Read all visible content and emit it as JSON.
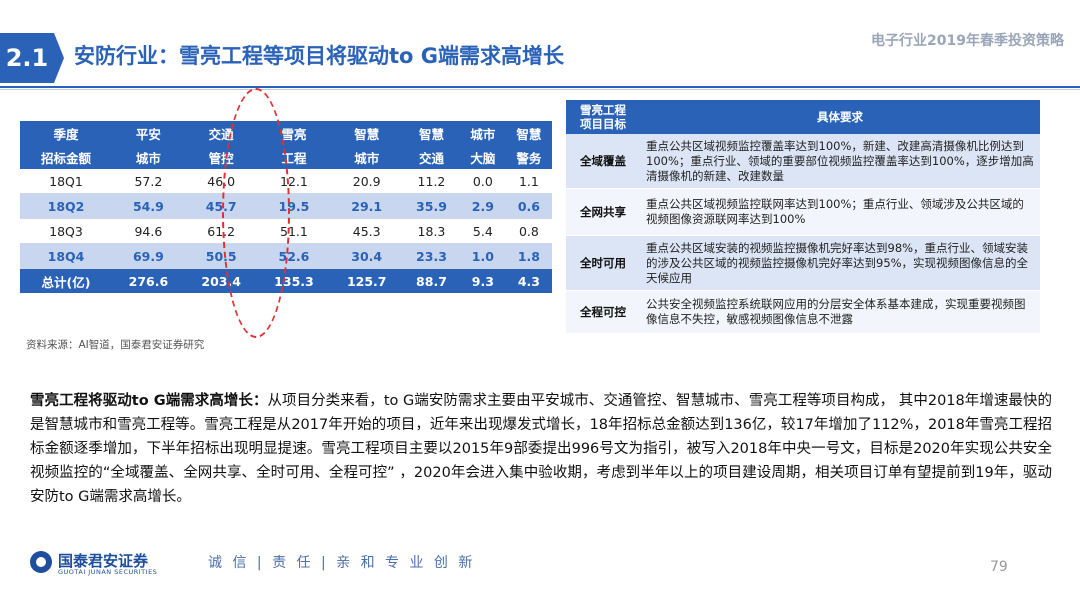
{
  "header": {
    "section_number": "2.1",
    "title": "安防行业：雪亮工程等项目将驱动to G端需求高增长",
    "report_title": "电子行业2019年春季投资策略"
  },
  "left_table": {
    "headers": [
      [
        "季度",
        "招标金额"
      ],
      [
        "平安",
        "城市"
      ],
      [
        "交通",
        "管控"
      ],
      [
        "雪亮",
        "工程"
      ],
      [
        "智慧",
        "城市"
      ],
      [
        "智慧",
        "交通"
      ],
      [
        "城市",
        "大脑"
      ],
      [
        "智慧",
        "警务"
      ]
    ],
    "rows": [
      [
        "18Q1",
        "57.2",
        "46.0",
        "12.1",
        "20.9",
        "11.2",
        "0.0",
        "1.1"
      ],
      [
        "18Q2",
        "54.9",
        "45.7",
        "19.5",
        "29.1",
        "35.9",
        "2.9",
        "0.6"
      ],
      [
        "18Q3",
        "94.6",
        "61.2",
        "51.1",
        "45.3",
        "18.3",
        "5.4",
        "0.8"
      ],
      [
        "18Q4",
        "69.9",
        "50.5",
        "52.6",
        "30.4",
        "23.3",
        "1.0",
        "1.8"
      ]
    ],
    "total": [
      "总计(亿)",
      "276.6",
      "203.4",
      "135.3",
      "125.7",
      "88.7",
      "9.3",
      "4.3"
    ]
  },
  "source_note": "资料来源：AI智道，国泰君安证券研究",
  "right_table": {
    "header_a": [
      "雪亮工程",
      "项目目标"
    ],
    "header_b": "具体要求",
    "rows": [
      {
        "goal": "全域覆盖",
        "requirement": "重点公共区域视频监控覆盖率达到100%，新建、改建高清摄像机比例达到100%；重点行业、领域的重要部位视频监控覆盖率达到100%，逐步增加高清摄像机的新建、改建数量"
      },
      {
        "goal": "全网共享",
        "requirement": "重点公共区域视频监控联网率达到100%；重点行业、领域涉及公共区域的视频图像资源联网率达到100%"
      },
      {
        "goal": "全时可用",
        "requirement": "重点公共区域安装的视频监控摄像机完好率达到98%，重点行业、领域安装的涉及公共区域的视频监控摄像机完好率达到95%，实现视频图像信息的全天候应用"
      },
      {
        "goal": "全程可控",
        "requirement": "公共安全视频监控系统联网应用的分层安全体系基本建成，实现重要视频图像信息不失控，敏感视频图像信息不泄露"
      }
    ]
  },
  "paragraph": {
    "lead": "雪亮工程将驱动to G端需求高增长：",
    "body": "从项目分类来看，to G端安防需求主要由平安城市、交通管控、智慧城市、雪亮工程等项目构成， 其中2018年增速最快的是智慧城市和雪亮工程等。雪亮工程是从2017年开始的项目，近年来出现爆发式增长，18年招标总金额达到136亿，较17年增加了112%，2018年雪亮工程招标金额逐季增加，下半年招标出现明显提速。雪亮工程项目主要以2015年9部委提出996号文为指引，被写入2018年中央一号文，目标是2020年实现公共安全视频监控的“全域覆盖、全网共享、全时可用、全程可控”  ，2020年会进入集中验收期，考虑到半年以上的项目建设周期，相关项目订单有望提前到19年，驱动安防to G端需求高增长。"
  },
  "footer": {
    "company": "国泰君安证券",
    "company_en": "GUOTAI JUNAN SECURITIES",
    "slogan": "诚 信 | 责 任 | 亲 和  专 业  创 新",
    "page_number": "79"
  },
  "colors": {
    "brand_blue": "#2a62b8",
    "row_highlight": "#c9d6ef",
    "ellipse_red": "#e03030"
  }
}
